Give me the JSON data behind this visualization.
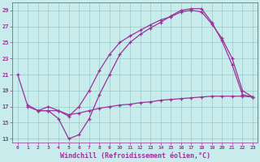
{
  "xlabel": "Windchill (Refroidissement éolien,°C)",
  "bg_color": "#c8ecec",
  "line_color": "#993399",
  "grid_color": "#99cccc",
  "xlim": [
    -0.5,
    23.5
  ],
  "ylim": [
    12.5,
    30.0
  ],
  "yticks": [
    13,
    15,
    17,
    19,
    21,
    23,
    25,
    27,
    29
  ],
  "xticks": [
    0,
    1,
    2,
    3,
    4,
    5,
    6,
    7,
    8,
    9,
    10,
    11,
    12,
    13,
    14,
    15,
    16,
    17,
    18,
    19,
    20,
    21,
    22,
    23
  ],
  "curve1_x": [
    0,
    1,
    2,
    3,
    4,
    5,
    6,
    7,
    8,
    9,
    10,
    11,
    12,
    13,
    14,
    15,
    16,
    17,
    18,
    19,
    20,
    21,
    22,
    23
  ],
  "curve1_y": [
    21,
    17,
    16.5,
    16.5,
    15.5,
    13,
    13.5,
    15.5,
    18.5,
    21,
    23.5,
    25,
    26,
    26.8,
    27.5,
    28.3,
    29,
    29.2,
    29.2,
    27.5,
    25.2,
    22.2,
    18.5,
    18.2
  ],
  "curve2_x": [
    1,
    2,
    3,
    4,
    5,
    6,
    7,
    8,
    9,
    10,
    11,
    12,
    13,
    14,
    15,
    16,
    17,
    18,
    19,
    20,
    21,
    22,
    23
  ],
  "curve2_y": [
    17.2,
    16.5,
    16.5,
    16.5,
    16.0,
    16.2,
    16.5,
    16.8,
    17.0,
    17.2,
    17.3,
    17.5,
    17.6,
    17.8,
    17.9,
    18.0,
    18.1,
    18.2,
    18.3,
    18.3,
    18.3,
    18.3,
    18.2
  ],
  "curve3_x": [
    2,
    3,
    4,
    5,
    6,
    7,
    8,
    9,
    10,
    11,
    12,
    13,
    14,
    15,
    16,
    17,
    18,
    19,
    20,
    21,
    22,
    23
  ],
  "curve3_y": [
    16.5,
    17.0,
    16.5,
    15.8,
    17.0,
    19.0,
    21.5,
    23.5,
    25.0,
    25.8,
    26.5,
    27.2,
    27.8,
    28.2,
    28.8,
    29.0,
    28.8,
    27.3,
    25.5,
    23.0,
    19.0,
    18.2
  ]
}
